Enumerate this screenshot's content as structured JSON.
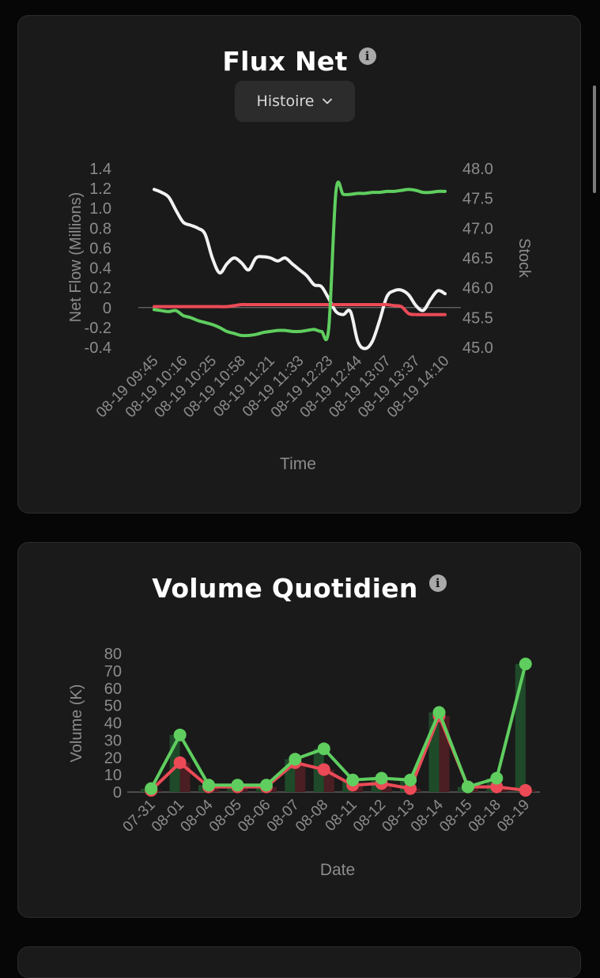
{
  "net_flow": {
    "title": "Flux Net",
    "dropdown_label": "Histoire"
  },
  "daily_volume": {
    "title": "Volume Quotidien"
  },
  "colors": {
    "buy": "#5fce5f",
    "sell": "#ec4a56",
    "price": "#f2f2f5",
    "axis_text": "#8c8c8c"
  },
  "chart_data": [
    {
      "type": "line",
      "title": "Flux Net",
      "xlabel": "Time",
      "ylabel": "Net Flow (Millions)",
      "y2label": "Stock",
      "ylim": [
        -0.4,
        1.4
      ],
      "y2lim": [
        45.0,
        48.0
      ],
      "y_ticks": [
        "1.4",
        "1.2",
        "1.0",
        "0.8",
        "0.6",
        "0.4",
        "0.2",
        "0",
        "-0.2",
        "-0.4"
      ],
      "y2_ticks": [
        "48.0",
        "47.5",
        "47.0",
        "46.5",
        "46.0",
        "45.5",
        "45.0"
      ],
      "x_tick_labels": [
        "08-19 09:45",
        "08-19 10:16",
        "08-19 10:25",
        "08-19 10:58",
        "08-19 11:21",
        "08-19 11:33",
        "08-19 12:23",
        "08-19 12:44",
        "08-19 13:07",
        "08-19 13:37",
        "08-19 14:10"
      ],
      "x": [
        0,
        0.25,
        0.5,
        0.75,
        1,
        1.25,
        1.5,
        1.75,
        2,
        2.25,
        2.5,
        2.75,
        3,
        3.25,
        3.5,
        3.75,
        4,
        4.25,
        4.5,
        4.75,
        5,
        5.25,
        5.5,
        5.75,
        6,
        6.25,
        6.5,
        6.75,
        7,
        7.25,
        7.5,
        7.75,
        8,
        8.25,
        8.5,
        8.75,
        9,
        9.25,
        9.5,
        9.75,
        10
      ],
      "series": [
        {
          "name": "",
          "axis": "left",
          "color": "#5fce5f",
          "values": [
            -0.02,
            -0.03,
            -0.04,
            -0.03,
            -0.08,
            -0.1,
            -0.13,
            -0.15,
            -0.17,
            -0.2,
            -0.24,
            -0.26,
            -0.28,
            -0.28,
            -0.27,
            -0.25,
            -0.24,
            -0.23,
            -0.23,
            -0.24,
            -0.24,
            -0.23,
            -0.22,
            -0.24,
            -0.21,
            1.17,
            1.14,
            1.14,
            1.15,
            1.15,
            1.16,
            1.16,
            1.17,
            1.17,
            1.18,
            1.19,
            1.18,
            1.16,
            1.16,
            1.17,
            1.17
          ]
        },
        {
          "name": "",
          "axis": "left",
          "color": "#ec4a56",
          "values": [
            0.01,
            0.01,
            0.01,
            0.01,
            0.01,
            0.01,
            0.01,
            0.01,
            0.01,
            0.01,
            0.01,
            0.02,
            0.03,
            0.03,
            0.03,
            0.03,
            0.03,
            0.03,
            0.03,
            0.03,
            0.03,
            0.03,
            0.03,
            0.03,
            0.03,
            0.03,
            0.03,
            0.03,
            0.03,
            0.03,
            0.03,
            0.03,
            0.03,
            0.02,
            0.01,
            -0.06,
            -0.07,
            -0.07,
            -0.07,
            -0.07,
            -0.07
          ]
        },
        {
          "name": "",
          "axis": "right",
          "color": "#f2f2f5",
          "values": [
            47.65,
            47.6,
            47.52,
            47.3,
            47.1,
            47.05,
            47.0,
            46.9,
            46.5,
            46.25,
            46.4,
            46.5,
            46.42,
            46.3,
            46.5,
            46.52,
            46.5,
            46.45,
            46.5,
            46.4,
            46.3,
            46.2,
            46.05,
            46.02,
            45.82,
            45.6,
            45.55,
            45.6,
            45.1,
            44.98,
            45.1,
            45.45,
            45.85,
            45.95,
            45.96,
            45.88,
            45.7,
            45.62,
            45.8,
            45.95,
            45.9
          ]
        }
      ]
    },
    {
      "type": "bar",
      "title": "Volume Quotidien",
      "xlabel": "Date",
      "ylabel": "Volume (K)",
      "ylim": [
        0,
        80
      ],
      "y_ticks": [
        "80",
        "70",
        "60",
        "50",
        "40",
        "30",
        "20",
        "10",
        "0"
      ],
      "categories": [
        "07-31",
        "08-01",
        "08-04",
        "08-05",
        "08-06",
        "08-07",
        "08-08",
        "08-11",
        "08-12",
        "08-13",
        "08-14",
        "08-15",
        "08-18",
        "08-19"
      ],
      "series": [
        {
          "name": "",
          "color": "#5fce5f",
          "values": [
            2,
            33,
            4,
            4,
            4,
            19,
            25,
            7,
            8,
            7,
            46,
            3,
            8,
            74
          ]
        },
        {
          "name": "",
          "color": "#ec4a56",
          "values": [
            1,
            17,
            3,
            3,
            3,
            17,
            13,
            4,
            5,
            2,
            44,
            3,
            3,
            1
          ]
        }
      ]
    }
  ]
}
